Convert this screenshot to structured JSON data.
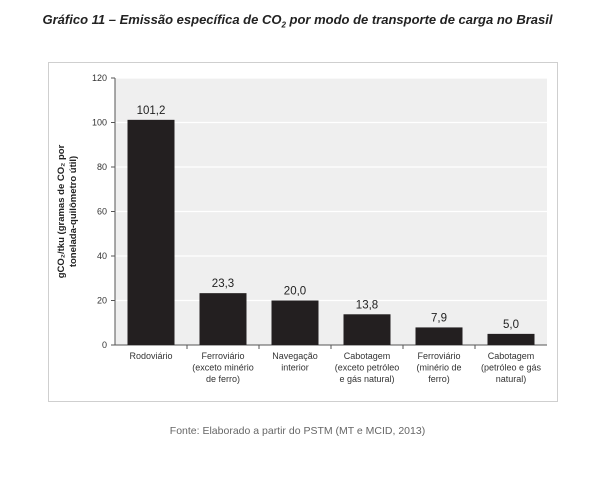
{
  "title": {
    "prefix": "Gráfico 11 – Emissão específica de CO",
    "subscript": "2",
    "suffix": " por modo de transporte de carga no Brasil"
  },
  "source": "Fonte: Elaborado a partir do PSTM (MT e MCID, 2013)",
  "chart_data": {
    "type": "bar",
    "categories": [
      [
        "Rodoviário"
      ],
      [
        "Ferroviário",
        "(exceto minério",
        "de ferro)"
      ],
      [
        "Navegação",
        "interior"
      ],
      [
        "Cabotagem",
        "(exceto petróleo",
        "e gás natural)"
      ],
      [
        "Ferroviário",
        "(minério de",
        "ferro)"
      ],
      [
        "Cabotagem",
        "(petróleo e gás",
        "natural)"
      ]
    ],
    "values": [
      101.2,
      23.3,
      20.0,
      13.8,
      7.9,
      5.0
    ],
    "value_labels": [
      "101,2",
      "23,3",
      "20,0",
      "13,8",
      "7,9",
      "5,0"
    ],
    "ylabel_lines": [
      "gCO₂/tku (gramas de CO₂ por",
      "tonelada-quilômetro útil)"
    ],
    "ylim": [
      0,
      120
    ],
    "yticks": [
      0,
      20,
      40,
      60,
      80,
      100,
      120
    ],
    "grid": true,
    "bar_color": "#231f20",
    "plot_background": "#efefef",
    "grid_color": "#ffffff"
  }
}
